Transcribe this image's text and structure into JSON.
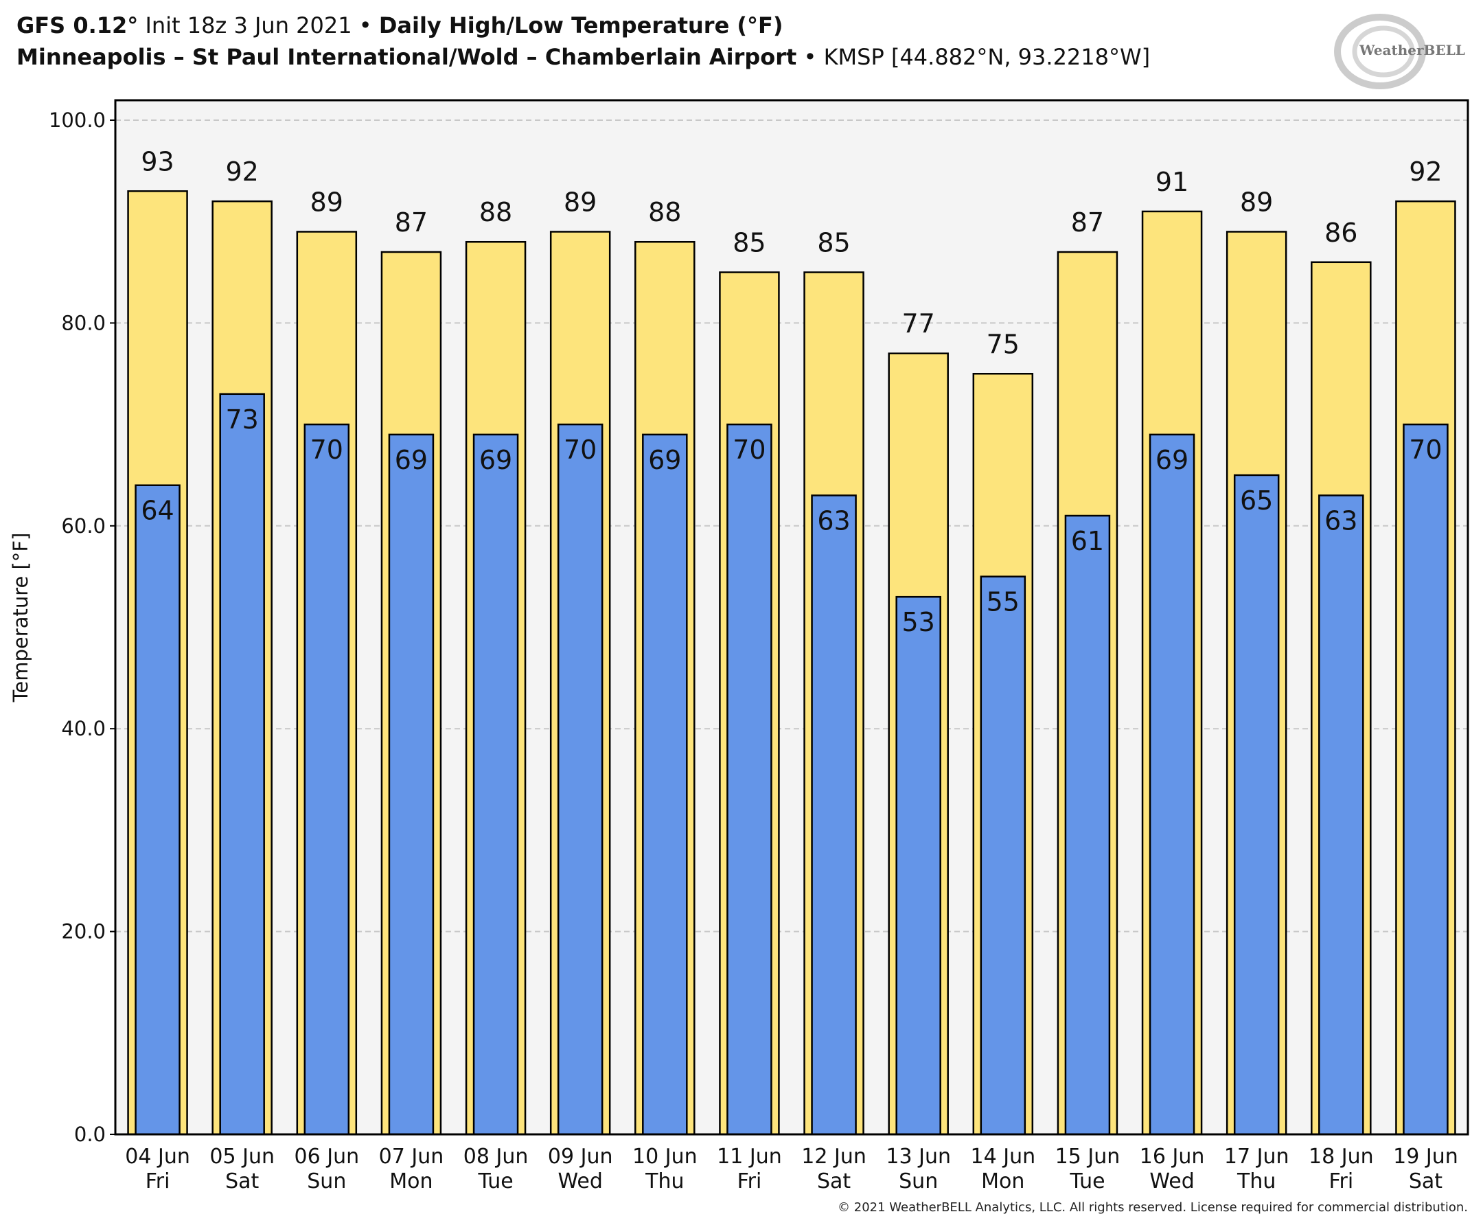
{
  "header": {
    "model": "GFS 0.12°",
    "init": "Init 18z 3 Jun 2021",
    "product": "Daily High/Low Temperature (°F)",
    "station_name": "Minneapolis – St Paul International/Wold – Chamberlain Airport",
    "station_id": "KMSP [44.882°N, 93.2218°W]",
    "separator": "•"
  },
  "logo": {
    "text": "WeatherBELL"
  },
  "footer": {
    "copyright": "© 2021 WeatherBELL Analytics, LLC. All rights reserved. License required for commercial distribution."
  },
  "chart_data": {
    "type": "bar",
    "title": "Daily High/Low Temperature (°F)",
    "ylabel": "Temperature [°F]",
    "xlabel": "",
    "ylim": [
      0,
      100
    ],
    "yticks": [
      "0.0",
      "20.0",
      "40.0",
      "60.0",
      "80.0",
      "100.0"
    ],
    "grid": true,
    "categories": [
      "04 Jun",
      "05 Jun",
      "06 Jun",
      "07 Jun",
      "08 Jun",
      "09 Jun",
      "10 Jun",
      "11 Jun",
      "12 Jun",
      "13 Jun",
      "14 Jun",
      "15 Jun",
      "16 Jun",
      "17 Jun",
      "18 Jun",
      "19 Jun"
    ],
    "weekdays": [
      "Fri",
      "Sat",
      "Sun",
      "Mon",
      "Tue",
      "Wed",
      "Thu",
      "Fri",
      "Sat",
      "Sun",
      "Mon",
      "Tue",
      "Wed",
      "Thu",
      "Fri",
      "Sat"
    ],
    "series": [
      {
        "key": "high",
        "color": "#fde47c",
        "values": [
          93,
          92,
          89,
          87,
          88,
          89,
          88,
          85,
          85,
          77,
          75,
          87,
          91,
          89,
          86,
          92
        ]
      },
      {
        "key": "low",
        "color": "#6495e8",
        "values": [
          64,
          73,
          70,
          69,
          69,
          70,
          69,
          70,
          63,
          53,
          55,
          61,
          69,
          65,
          63,
          70
        ]
      }
    ],
    "plot_background": "#f4f4f4"
  }
}
